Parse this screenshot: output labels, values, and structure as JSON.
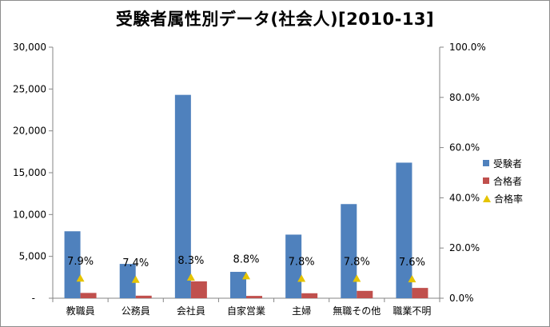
{
  "chart_data": {
    "type": "bar",
    "title": "受験者属性別データ(社会人)[2010-13]",
    "categories": [
      "教職員",
      "公務員",
      "会社員",
      "自家営業",
      "主婦",
      "無職その他",
      "職業不明"
    ],
    "series": [
      {
        "name": "受験者",
        "axis": "left",
        "type": "bar",
        "color": "#4f81bd",
        "values": [
          8000,
          4100,
          24300,
          3150,
          7600,
          11250,
          16200
        ]
      },
      {
        "name": "合格者",
        "axis": "left",
        "type": "bar",
        "color": "#c0504d",
        "values": [
          632,
          303,
          2017,
          277,
          593,
          878,
          1231
        ]
      },
      {
        "name": "合格率",
        "axis": "right",
        "type": "scatter",
        "color": "#e5c400",
        "values": [
          7.9,
          7.4,
          8.3,
          8.8,
          7.8,
          7.8,
          7.6
        ],
        "labels": [
          "7.9%",
          "7.4%",
          "8.3%",
          "8.8%",
          "7.8%",
          "7.8%",
          "7.6%"
        ]
      }
    ],
    "ylim": [
      0,
      30000
    ],
    "y_ticks": [
      "-",
      "5,000",
      "10,000",
      "15,000",
      "20,000",
      "25,000",
      "30,000"
    ],
    "y2lim": [
      0,
      100
    ],
    "y2_ticks": [
      "0.0%",
      "20.0%",
      "40.0%",
      "60.0%",
      "80.0%",
      "100.0%"
    ],
    "grid": false,
    "legend_position": "right"
  }
}
